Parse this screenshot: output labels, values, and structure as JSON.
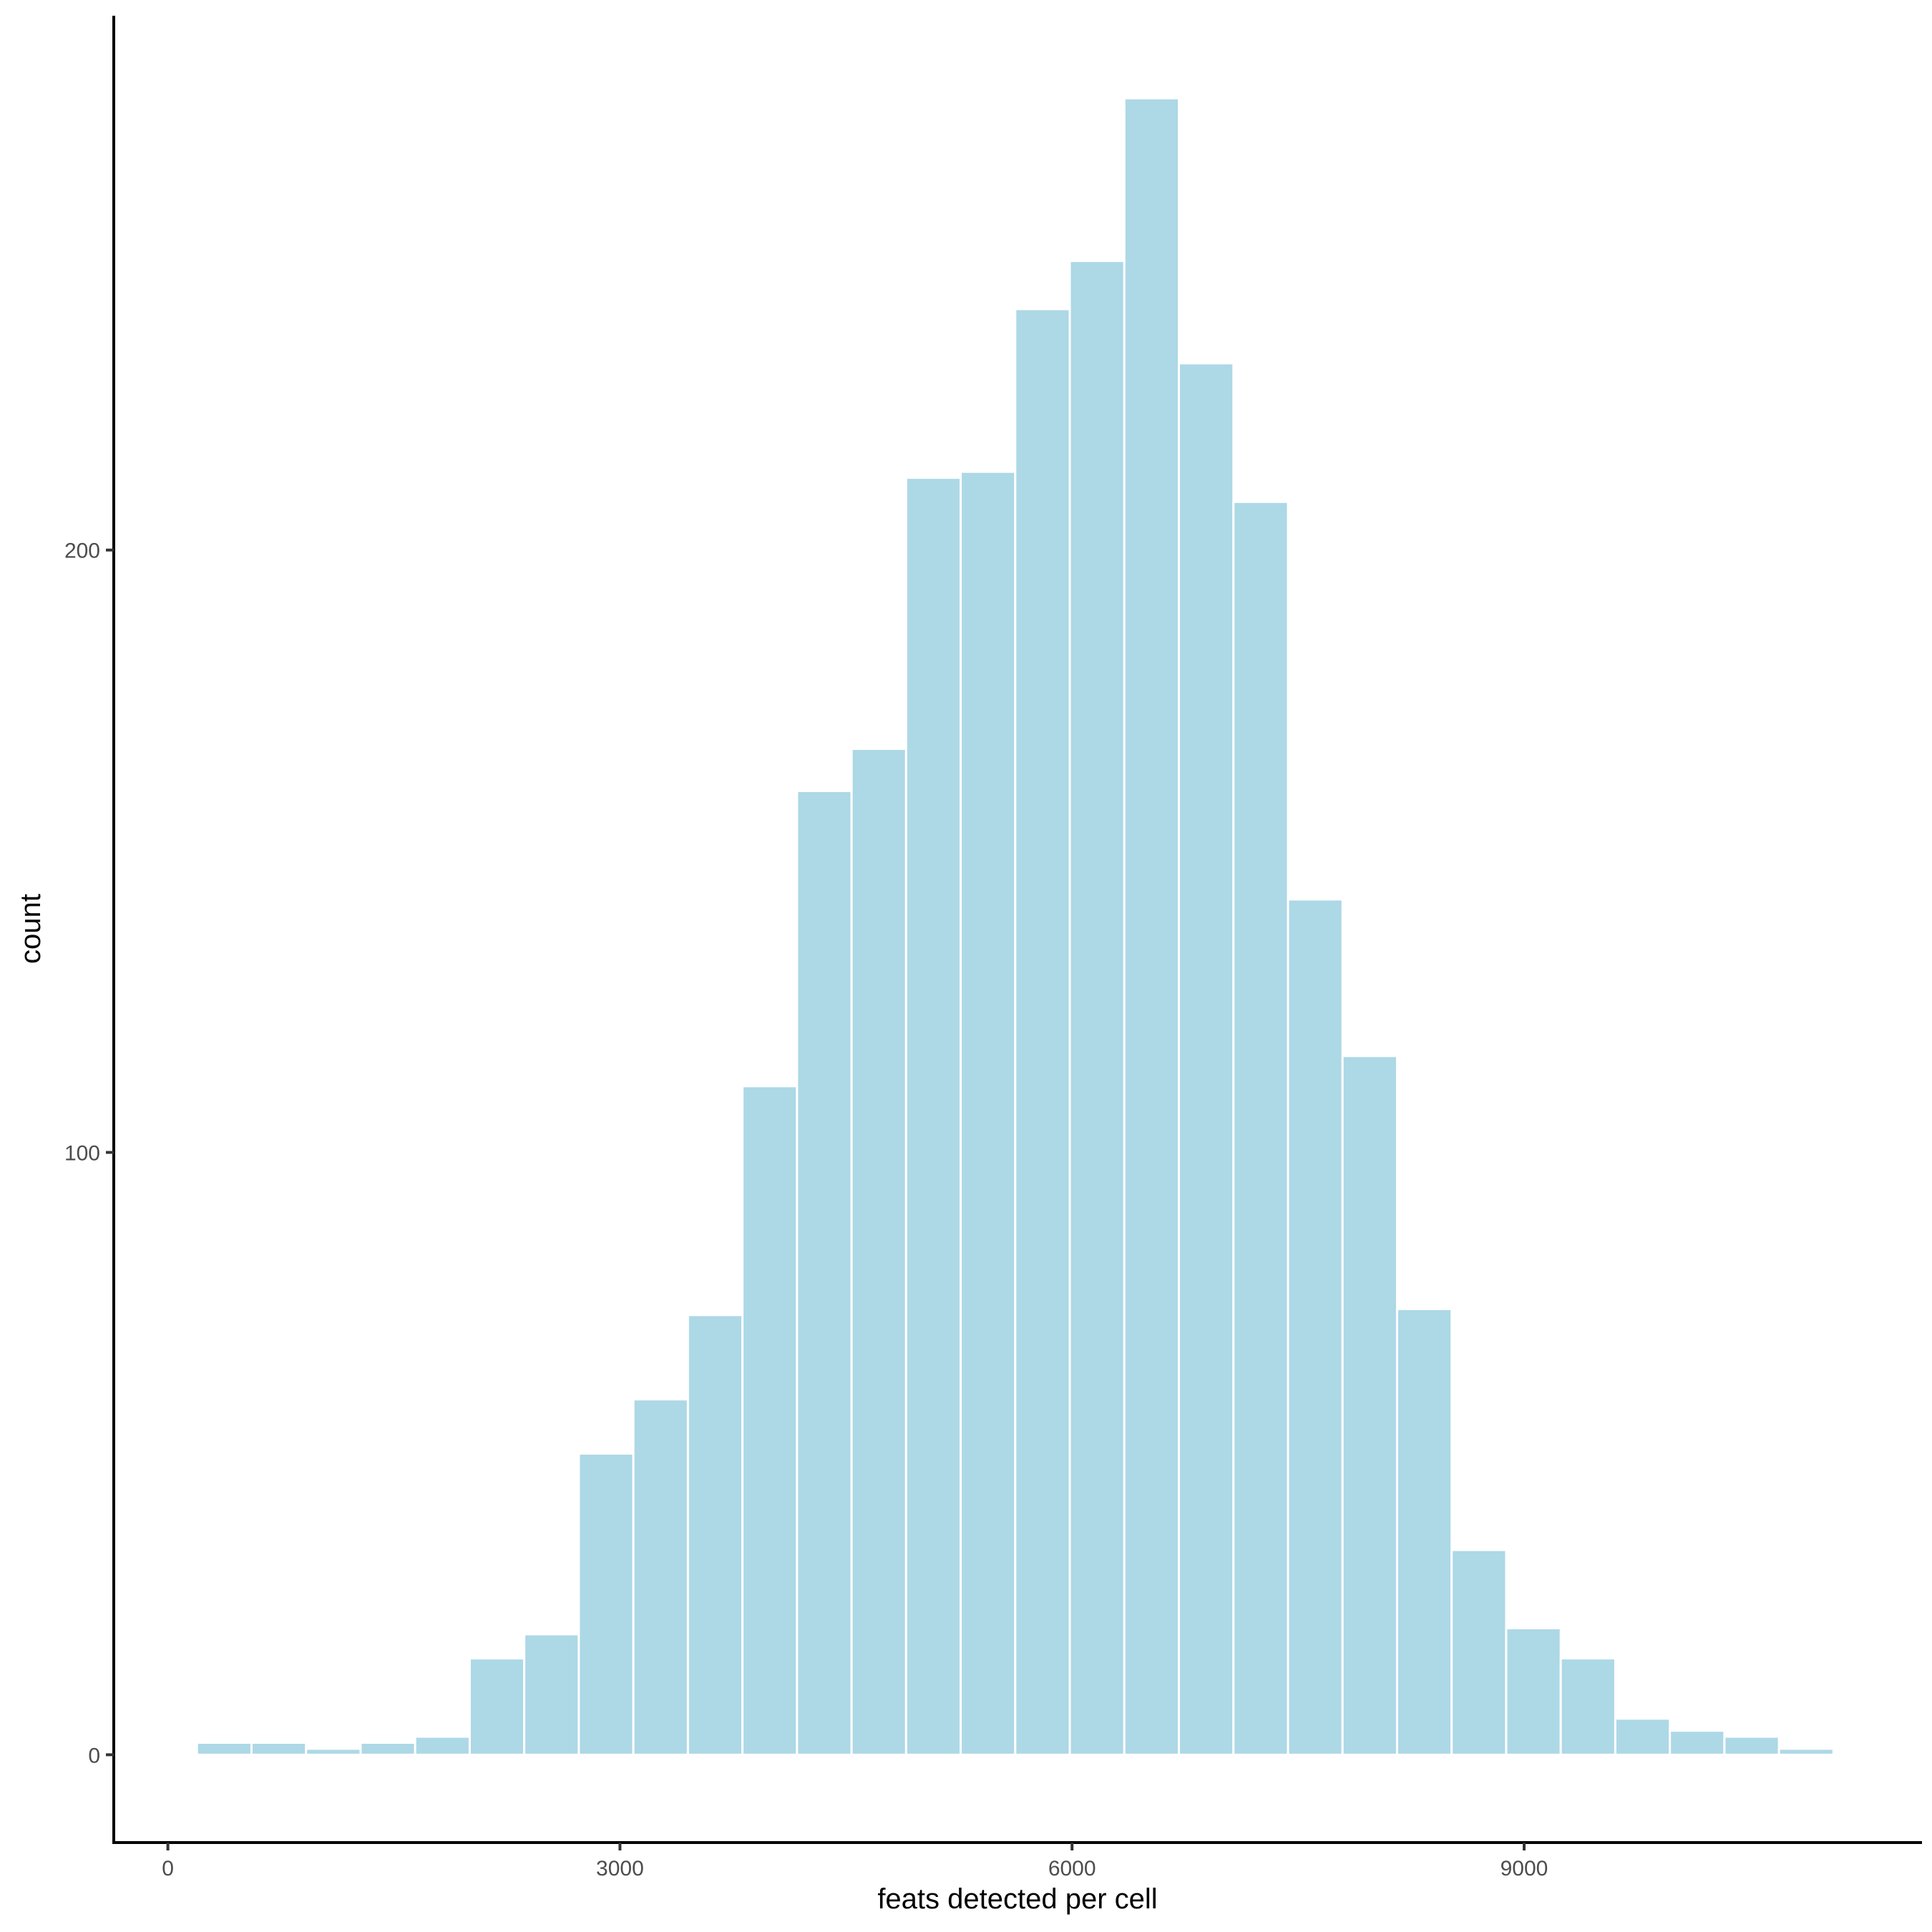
{
  "chart_data": {
    "type": "bar",
    "subtype": "histogram",
    "title": "",
    "xlabel": "feats detected per cell",
    "ylabel": "count",
    "bin_width": 362,
    "bin_start": 193,
    "bin_centers": [
      374,
      736,
      1098,
      1460,
      1822,
      2184,
      2546,
      2908,
      3270,
      3632,
      3994,
      4356,
      4718,
      5080,
      5442,
      5804,
      6166,
      6528,
      6890,
      7252,
      7614,
      7976,
      8338,
      8700,
      9062,
      9424,
      9786,
      10148,
      10510,
      10872
    ],
    "values": [
      2,
      2,
      1,
      2,
      3,
      16,
      20,
      50,
      59,
      73,
      111,
      160,
      167,
      212,
      213,
      240,
      248,
      275,
      231,
      208,
      142,
      116,
      74,
      34,
      21,
      16,
      6,
      4,
      3,
      1
    ],
    "xlim": [
      -359,
      11636
    ],
    "ylim": [
      -14.6,
      288.7
    ],
    "x_ticks": [
      0,
      3000,
      6000,
      9000
    ],
    "x_tick_labels": [
      "0",
      "3000",
      "6000",
      "9000"
    ],
    "y_ticks": [
      0,
      100,
      200
    ],
    "y_tick_labels": [
      "0",
      "100",
      "200"
    ],
    "grid": false,
    "legend": null,
    "colors": {
      "fill": "#add8e6",
      "outline": "#ffffff",
      "axis": "#000000",
      "tick_text": "#4d4d4d"
    }
  }
}
